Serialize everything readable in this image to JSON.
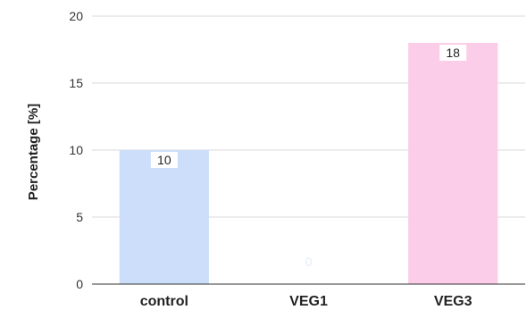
{
  "chart_data": {
    "type": "bar",
    "categories": [
      "control",
      "VEG1",
      "VEG3"
    ],
    "values": [
      10,
      0,
      18
    ],
    "data_labels": [
      "10",
      "0",
      "18"
    ],
    "colors": [
      "#ccdefa",
      "#ccdefa",
      "#fbcde9"
    ],
    "title": "",
    "xlabel": "",
    "ylabel": "Percentage [%]",
    "ylim": [
      0,
      20
    ],
    "yticks": [
      0,
      5,
      10,
      15,
      20
    ],
    "ytick_labels": [
      "0",
      "5",
      "10",
      "15",
      "20"
    ],
    "grid": true,
    "legend": "none"
  }
}
